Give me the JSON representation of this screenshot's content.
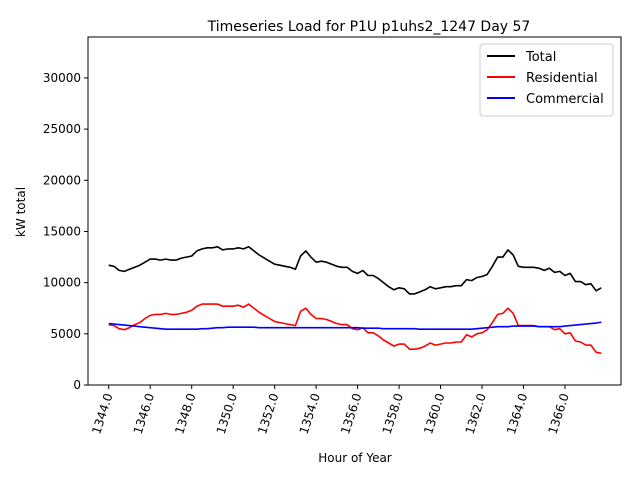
{
  "chart_data": {
    "type": "line",
    "title": "Timeseries Load for P1U p1uhs2_1247  Day 57",
    "xlabel": "Hour of Year",
    "ylabel": "kW total",
    "xlim": [
      1343.0,
      1368.7
    ],
    "ylim": [
      0,
      34000
    ],
    "x_ticks": [
      1344,
      1346,
      1348,
      1350,
      1352,
      1354,
      1356,
      1358,
      1360,
      1362,
      1364,
      1366
    ],
    "x_tick_labels": [
      "1344.0",
      "1346.0",
      "1348.0",
      "1350.0",
      "1352.0",
      "1354.0",
      "1356.0",
      "1358.0",
      "1360.0",
      "1362.0",
      "1364.0",
      "1366.0"
    ],
    "y_ticks": [
      0,
      5000,
      10000,
      15000,
      20000,
      25000,
      30000
    ],
    "y_tick_labels": [
      "0",
      "5000",
      "10000",
      "15000",
      "20000",
      "25000",
      "30000"
    ],
    "legend_position": "top-right",
    "x": [
      1344.0,
      1344.25,
      1344.5,
      1344.75,
      1345.0,
      1345.25,
      1345.5,
      1345.75,
      1346.0,
      1346.25,
      1346.5,
      1346.75,
      1347.0,
      1347.25,
      1347.5,
      1347.75,
      1348.0,
      1348.25,
      1348.5,
      1348.75,
      1349.0,
      1349.25,
      1349.5,
      1349.75,
      1350.0,
      1350.25,
      1350.5,
      1350.75,
      1351.0,
      1351.25,
      1351.5,
      1351.75,
      1352.0,
      1352.25,
      1352.5,
      1352.75,
      1353.0,
      1353.25,
      1353.5,
      1353.75,
      1354.0,
      1354.25,
      1354.5,
      1354.75,
      1355.0,
      1355.25,
      1355.5,
      1355.75,
      1356.0,
      1356.25,
      1356.5,
      1356.75,
      1357.0,
      1357.25,
      1357.5,
      1357.75,
      1358.0,
      1358.25,
      1358.5,
      1358.75,
      1359.0,
      1359.25,
      1359.5,
      1359.75,
      1360.0,
      1360.25,
      1360.5,
      1360.75,
      1361.0,
      1361.25,
      1361.5,
      1361.75,
      1362.0,
      1362.25,
      1362.5,
      1362.75,
      1363.0,
      1363.25,
      1363.5,
      1363.75,
      1364.0,
      1364.25,
      1364.5,
      1364.75,
      1365.0,
      1365.25,
      1365.5,
      1365.75,
      1366.0,
      1366.25,
      1366.5,
      1366.75,
      1367.0,
      1367.25,
      1367.5,
      1367.75
    ],
    "series": [
      {
        "name": "Total",
        "color": "#000000",
        "values": [
          11700,
          11600,
          11200,
          11100,
          11300,
          11500,
          11700,
          12000,
          12300,
          12300,
          12200,
          12300,
          12200,
          12200,
          12400,
          12500,
          12600,
          13100,
          13300,
          13400,
          13400,
          13500,
          13200,
          13300,
          13300,
          13400,
          13300,
          13500,
          13100,
          12700,
          12400,
          12100,
          11800,
          11700,
          11600,
          11500,
          11300,
          12600,
          13100,
          12500,
          12000,
          12100,
          12000,
          11800,
          11600,
          11500,
          11500,
          11100,
          10900,
          11200,
          10700,
          10700,
          10400,
          10000,
          9600,
          9300,
          9500,
          9400,
          8900,
          8900,
          9100,
          9300,
          9600,
          9400,
          9500,
          9600,
          9600,
          9700,
          9700,
          10300,
          10200,
          10500,
          10600,
          10800,
          11600,
          12500,
          12500,
          13200,
          12700,
          11600,
          11500,
          11500,
          11500,
          11400,
          11200,
          11400,
          11000,
          11100,
          10700,
          10900,
          10100,
          10100,
          9800,
          9900,
          9200,
          9500
        ]
      },
      {
        "name": "Residential",
        "color": "#ff0000",
        "values": [
          5900,
          5800,
          5500,
          5400,
          5600,
          5900,
          6100,
          6500,
          6800,
          6900,
          6900,
          7000,
          6900,
          6900,
          7000,
          7100,
          7300,
          7700,
          7900,
          7900,
          7900,
          7900,
          7700,
          7700,
          7700,
          7800,
          7600,
          7900,
          7500,
          7100,
          6800,
          6500,
          6200,
          6100,
          6000,
          5900,
          5800,
          7200,
          7500,
          6900,
          6500,
          6500,
          6400,
          6200,
          6000,
          5900,
          5900,
          5500,
          5400,
          5600,
          5100,
          5100,
          4800,
          4400,
          4100,
          3800,
          4000,
          4000,
          3500,
          3500,
          3600,
          3800,
          4100,
          3900,
          4000,
          4100,
          4100,
          4200,
          4200,
          4900,
          4700,
          5000,
          5100,
          5400,
          6100,
          6900,
          7000,
          7500,
          7000,
          5800,
          5800,
          5800,
          5800,
          5700,
          5700,
          5700,
          5400,
          5500,
          5000,
          5100,
          4300,
          4200,
          3900,
          3900,
          3200,
          3100
        ]
      },
      {
        "name": "Commercial",
        "color": "#0000ff",
        "values": [
          6000,
          5950,
          5900,
          5850,
          5800,
          5750,
          5700,
          5650,
          5600,
          5550,
          5500,
          5450,
          5450,
          5450,
          5450,
          5450,
          5450,
          5450,
          5500,
          5500,
          5550,
          5600,
          5600,
          5650,
          5650,
          5650,
          5650,
          5650,
          5650,
          5600,
          5600,
          5600,
          5600,
          5600,
          5600,
          5600,
          5600,
          5600,
          5600,
          5600,
          5600,
          5600,
          5600,
          5600,
          5600,
          5600,
          5600,
          5600,
          5600,
          5550,
          5550,
          5550,
          5550,
          5500,
          5500,
          5500,
          5500,
          5500,
          5500,
          5500,
          5450,
          5450,
          5450,
          5450,
          5450,
          5450,
          5450,
          5450,
          5450,
          5450,
          5450,
          5500,
          5550,
          5600,
          5650,
          5700,
          5700,
          5700,
          5750,
          5750,
          5750,
          5750,
          5750,
          5700,
          5700,
          5700,
          5700,
          5700,
          5750,
          5800,
          5850,
          5900,
          5950,
          6000,
          6050,
          6150
        ]
      }
    ]
  }
}
